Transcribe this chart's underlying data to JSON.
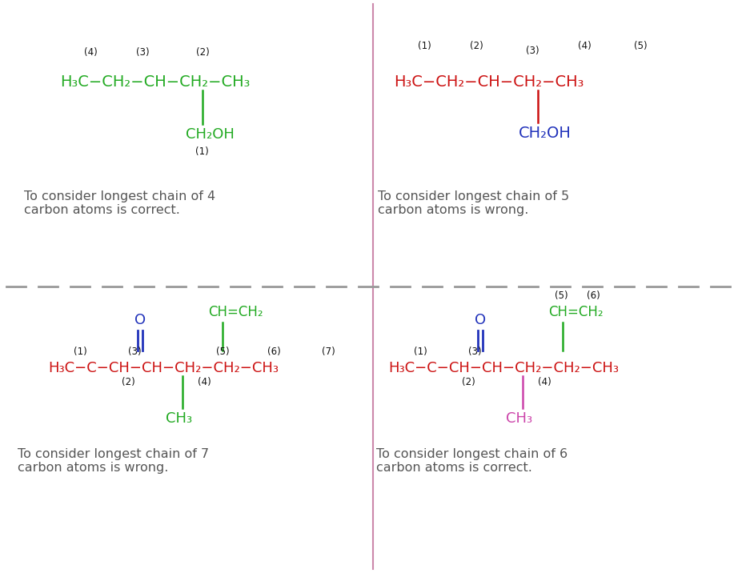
{
  "bg_color": "#ffffff",
  "divider_color": "#cc88aa",
  "dash_color": "#999999",
  "text_color": "#555555",
  "green": "#22aa22",
  "red": "#cc1111",
  "blue": "#2233bb",
  "pink": "#cc44aa",
  "black": "#111111",
  "captions": {
    "tl": "To consider longest chain of 4\ncarbon atoms is correct.",
    "tr": "To consider longest chain of 5\ncarbon atoms is wrong.",
    "bl": "To consider longest chain of 7\ncarbon atoms is wrong.",
    "br": "To consider longest chain of 6\ncarbon atoms is correct."
  },
  "fig_w": 9.32,
  "fig_h": 7.16,
  "dpi": 100
}
